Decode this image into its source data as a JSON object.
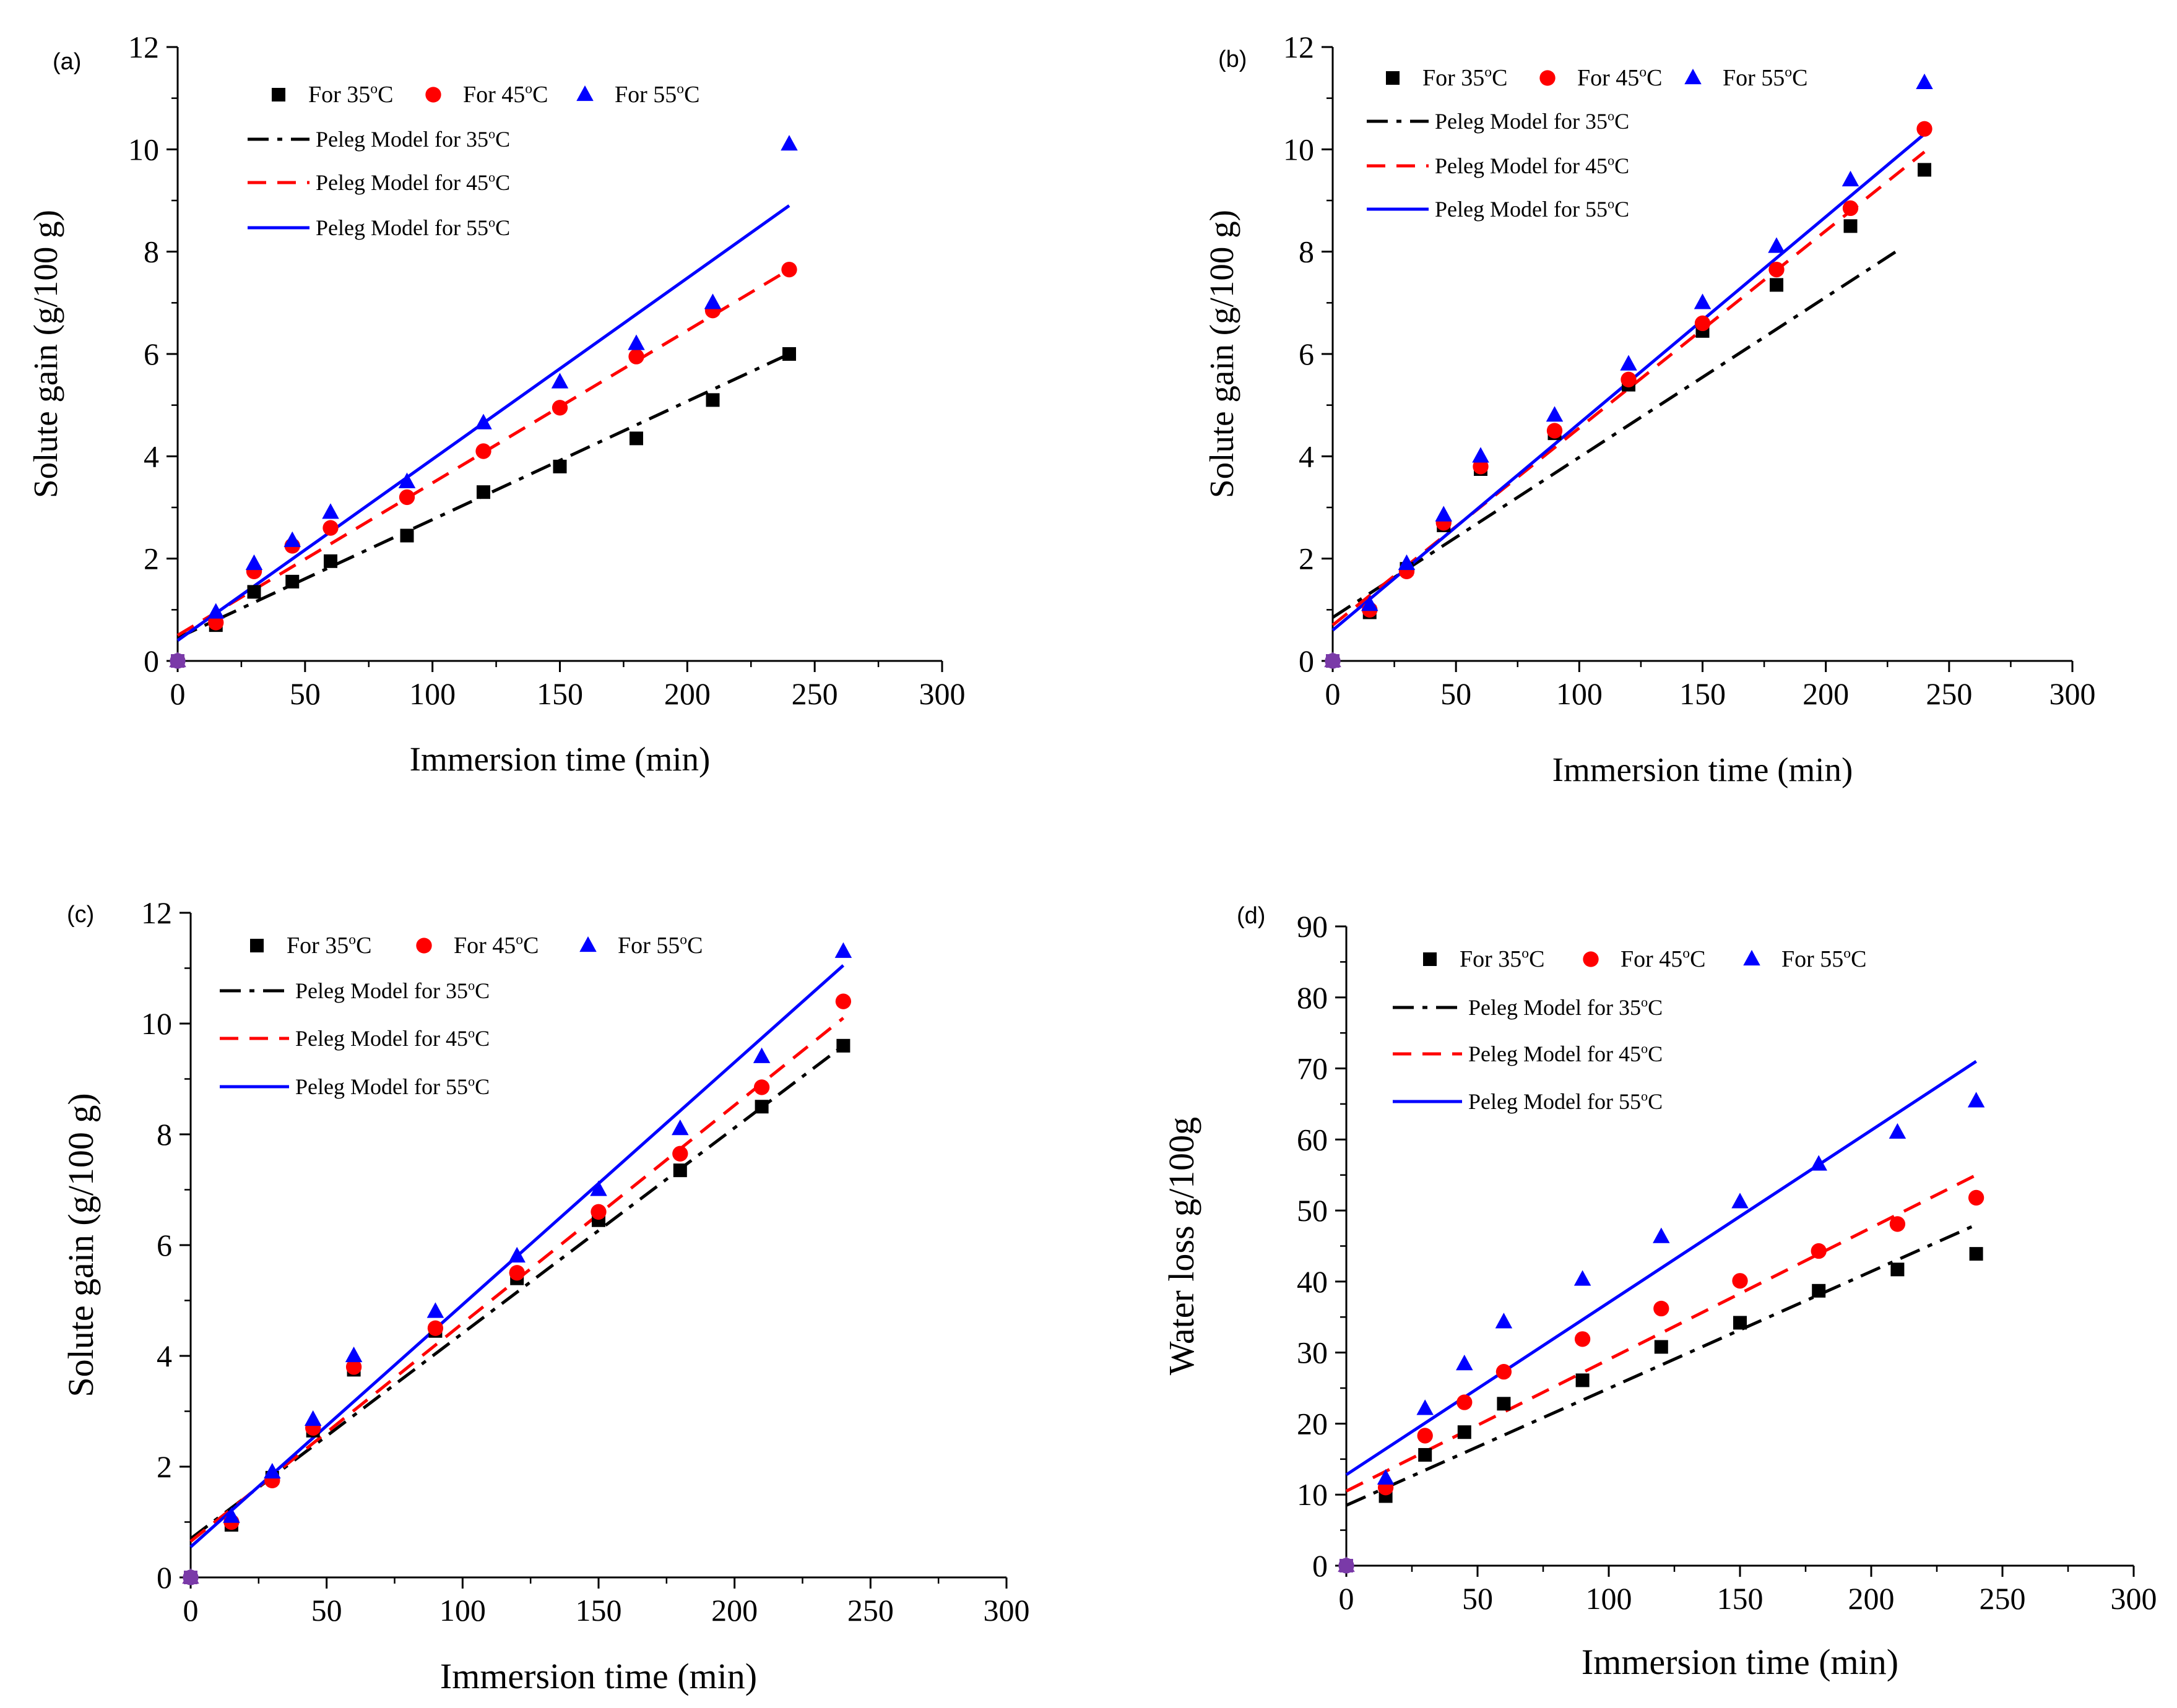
{
  "figure": {
    "colors": {
      "t35": "#000000",
      "t45": "#ff0000",
      "t55": "#0000ff"
    }
  },
  "chart_data": [
    {
      "panel": "(a)",
      "type": "scatter",
      "xlabel": "Immersion time (min)",
      "ylabel": "Solute gain (g/100 g)",
      "xlim": [
        0,
        300
      ],
      "ylim": [
        0,
        12
      ],
      "xticks": [
        0,
        50,
        100,
        150,
        200,
        250,
        300
      ],
      "yticks": [
        0,
        2,
        4,
        6,
        8,
        10,
        12
      ],
      "x": [
        0,
        15,
        30,
        45,
        60,
        90,
        120,
        150,
        180,
        210,
        240
      ],
      "series": [
        {
          "name": "For 35°C",
          "temp": "35",
          "marker": "square",
          "values": [
            0,
            0.7,
            1.35,
            1.55,
            1.95,
            2.45,
            3.3,
            3.8,
            4.35,
            5.1,
            6.0
          ]
        },
        {
          "name": "For 45°C",
          "temp": "45",
          "marker": "circle",
          "values": [
            0,
            0.75,
            1.75,
            2.25,
            2.6,
            3.2,
            4.1,
            4.95,
            5.95,
            6.85,
            7.65
          ]
        },
        {
          "name": "For 55°C",
          "temp": "55",
          "marker": "triangle",
          "values": [
            0,
            0.95,
            1.9,
            2.35,
            2.9,
            3.5,
            4.65,
            5.45,
            6.2,
            7.0,
            10.1
          ]
        }
      ],
      "models": [
        {
          "name": "Peleg Model for 35°C",
          "temp": "35",
          "style": "dashdot",
          "x": [
            0,
            240
          ],
          "y": [
            0.45,
            6.0
          ]
        },
        {
          "name": "Peleg Model for 45°C",
          "temp": "45",
          "style": "dash",
          "x": [
            0,
            240
          ],
          "y": [
            0.5,
            7.65
          ]
        },
        {
          "name": "Peleg Model for 55°C",
          "temp": "55",
          "style": "solid",
          "x": [
            0,
            240
          ],
          "y": [
            0.4,
            8.9
          ]
        }
      ]
    },
    {
      "panel": "(b)",
      "type": "scatter",
      "xlabel": "Immersion time (min)",
      "ylabel": "Solute gain (g/100 g)",
      "xlim": [
        0,
        300
      ],
      "ylim": [
        0,
        12
      ],
      "xticks": [
        0,
        50,
        100,
        150,
        200,
        250,
        300
      ],
      "yticks": [
        0,
        2,
        4,
        6,
        8,
        10,
        12
      ],
      "x": [
        0,
        15,
        30,
        45,
        60,
        90,
        120,
        150,
        180,
        210,
        240
      ],
      "series": [
        {
          "name": "For 35°C",
          "temp": "35",
          "marker": "square",
          "values": [
            0,
            0.95,
            1.8,
            2.65,
            3.75,
            4.45,
            5.4,
            6.45,
            7.35,
            8.5,
            9.6
          ]
        },
        {
          "name": "For 45°C",
          "temp": "45",
          "marker": "circle",
          "values": [
            0,
            1.0,
            1.75,
            2.7,
            3.8,
            4.5,
            5.5,
            6.6,
            7.65,
            8.85,
            10.4
          ]
        },
        {
          "name": "For 55°C",
          "temp": "55",
          "marker": "triangle",
          "values": [
            0,
            1.1,
            1.9,
            2.85,
            4.0,
            4.8,
            5.8,
            7.0,
            8.1,
            9.4,
            11.3
          ]
        }
      ],
      "models": [
        {
          "name": "Peleg Model for 35°C",
          "temp": "35",
          "style": "dashdot",
          "x": [
            0,
            230
          ],
          "y": [
            0.85,
            8.05
          ]
        },
        {
          "name": "Peleg Model for 45°C",
          "temp": "45",
          "style": "dash",
          "x": [
            0,
            240
          ],
          "y": [
            0.7,
            9.95
          ]
        },
        {
          "name": "Peleg Model for 55°C",
          "temp": "55",
          "style": "solid",
          "x": [
            0,
            240
          ],
          "y": [
            0.6,
            10.3
          ]
        }
      ]
    },
    {
      "panel": "(c)",
      "type": "scatter",
      "xlabel": "Immersion time (min)",
      "ylabel": "Solute gain (g/100 g)",
      "xlim": [
        0,
        300
      ],
      "ylim": [
        0,
        12
      ],
      "xticks": [
        0,
        50,
        100,
        150,
        200,
        250,
        300
      ],
      "yticks": [
        0,
        2,
        4,
        6,
        8,
        10,
        12
      ],
      "x": [
        0,
        15,
        30,
        45,
        60,
        90,
        120,
        150,
        180,
        210,
        240
      ],
      "series": [
        {
          "name": "For 35°C",
          "temp": "35",
          "marker": "square",
          "values": [
            0,
            0.95,
            1.8,
            2.65,
            3.75,
            4.45,
            5.4,
            6.45,
            7.35,
            8.5,
            9.6
          ]
        },
        {
          "name": "For 45°C",
          "temp": "45",
          "marker": "circle",
          "values": [
            0,
            1.0,
            1.75,
            2.7,
            3.8,
            4.5,
            5.5,
            6.6,
            7.65,
            8.85,
            10.4
          ]
        },
        {
          "name": "For 55°C",
          "temp": "55",
          "marker": "triangle",
          "values": [
            0,
            1.1,
            1.9,
            2.85,
            4.0,
            4.8,
            5.8,
            7.0,
            8.1,
            9.4,
            11.3
          ]
        }
      ],
      "models": [
        {
          "name": "Peleg Model for 35°C",
          "temp": "35",
          "style": "dashdot",
          "x": [
            0,
            240
          ],
          "y": [
            0.7,
            9.6
          ]
        },
        {
          "name": "Peleg Model for 45°C",
          "temp": "45",
          "style": "dash",
          "x": [
            0,
            240
          ],
          "y": [
            0.65,
            10.1
          ]
        },
        {
          "name": "Peleg Model for 55°C",
          "temp": "55",
          "style": "solid",
          "x": [
            0,
            240
          ],
          "y": [
            0.55,
            11.05
          ]
        }
      ]
    },
    {
      "panel": "(d)",
      "type": "scatter",
      "xlabel": "Immersion time (min)",
      "ylabel": "Water loss g/100g",
      "xlim": [
        0,
        300
      ],
      "ylim": [
        0,
        90
      ],
      "xticks": [
        0,
        50,
        100,
        150,
        200,
        250,
        300
      ],
      "yticks": [
        0,
        10,
        20,
        30,
        40,
        50,
        60,
        70,
        80,
        90
      ],
      "x": [
        0,
        15,
        30,
        45,
        60,
        90,
        120,
        150,
        180,
        210,
        240
      ],
      "series": [
        {
          "name": "For 35°C",
          "temp": "35",
          "marker": "square",
          "values": [
            0,
            9.8,
            15.6,
            18.8,
            22.8,
            26.1,
            30.8,
            34.2,
            38.7,
            41.7,
            43.9
          ]
        },
        {
          "name": "For 45°C",
          "temp": "45",
          "marker": "circle",
          "values": [
            0,
            11.0,
            18.3,
            23.0,
            27.3,
            31.9,
            36.2,
            40.1,
            44.3,
            48.1,
            51.8
          ]
        },
        {
          "name": "For 55°C",
          "temp": "55",
          "marker": "triangle",
          "values": [
            0,
            12.3,
            22.1,
            28.4,
            34.3,
            40.3,
            46.3,
            51.2,
            56.5,
            61.0,
            65.4
          ]
        }
      ],
      "models": [
        {
          "name": "Peleg Model for 35°C",
          "temp": "35",
          "style": "dashdot",
          "x": [
            0,
            240
          ],
          "y": [
            8.5,
            48.0
          ]
        },
        {
          "name": "Peleg Model for 45°C",
          "temp": "45",
          "style": "dash",
          "x": [
            0,
            240
          ],
          "y": [
            10.5,
            55.0
          ]
        },
        {
          "name": "Peleg Model for 55°C",
          "temp": "55",
          "style": "solid",
          "x": [
            0,
            240
          ],
          "y": [
            12.8,
            71.0
          ]
        }
      ]
    }
  ]
}
